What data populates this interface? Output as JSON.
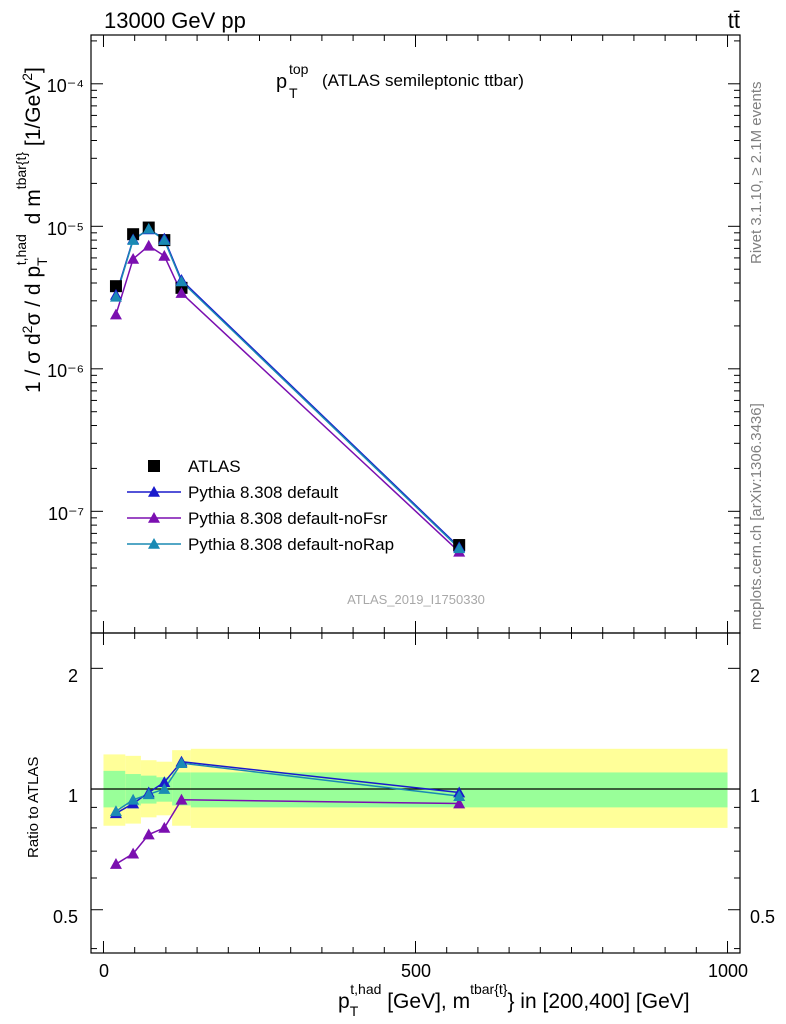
{
  "header": {
    "energy_label": "13000 GeV pp",
    "process_label": "tt̄"
  },
  "main_plot": {
    "title_main": "p",
    "title_sup": "top",
    "title_sub": "T",
    "title_rest": "(ATLAS semileptonic ttbar)",
    "ylabel": "1 / σ d²σ / d p_T^{t,had} d m^{tbar{t}} [1/GeV²]",
    "watermark": "ATLAS_2019_I1750330",
    "yticks": [
      "10⁻⁴",
      "10⁻⁵",
      "10⁻⁶",
      "10⁻⁷"
    ]
  },
  "ratio_plot": {
    "ylabel": "Ratio to ATLAS",
    "yticks": [
      "2",
      "1",
      "0.5"
    ]
  },
  "xaxis": {
    "ticks": [
      "0",
      "500",
      "1000"
    ],
    "label": "p_T^{t,had} [GeV], m^{tbar{t}} in [200,400] [GeV]"
  },
  "side_text": {
    "rivet": "Rivet 3.1.10, ≥ 2.1M events",
    "mcplots": "mcplots.cern.ch [arXiv:1306.3436]"
  },
  "legend": [
    {
      "label": "ATLAS",
      "marker": "square",
      "color": "#000000"
    },
    {
      "label": "Pythia 8.308 default",
      "marker": "triangle",
      "color": "#1a1acc"
    },
    {
      "label": "Pythia 8.308 default-noFsr",
      "marker": "triangle",
      "color": "#7b0fb0"
    },
    {
      "label": "Pythia 8.308 default-noRap",
      "marker": "triangle",
      "color": "#1a8ab4"
    }
  ],
  "chart_data": {
    "type": "scatter",
    "x": [
      20,
      47.5,
      72.5,
      97.5,
      125,
      570
    ],
    "xlim": [
      -20,
      1020
    ],
    "main": {
      "yscale": "log",
      "ylim": [
        1.4e-08,
        0.00022
      ],
      "series": [
        {
          "name": "ATLAS",
          "values": [
            3.8e-06,
            8.8e-06,
            9.8e-06,
            8e-06,
            3.7e-06,
            5.8e-08
          ],
          "color": "#000000",
          "marker": "square"
        },
        {
          "name": "Pythia 8.308 default",
          "values": [
            3.3e-06,
            8.1e-06,
            9.5e-06,
            8.2e-06,
            4.2e-06,
            5.6e-08
          ],
          "color": "#1a1acc",
          "marker": "triangle"
        },
        {
          "name": "Pythia 8.308 default-noFsr",
          "values": [
            2.4e-06,
            5.9e-06,
            7.3e-06,
            6.2e-06,
            3.4e-06,
            5.2e-08
          ],
          "color": "#7b0fb0",
          "marker": "triangle"
        },
        {
          "name": "Pythia 8.308 default-noRap",
          "values": [
            3.2e-06,
            8e-06,
            9.6e-06,
            8e-06,
            4.1e-06,
            5.5e-08
          ],
          "color": "#1a8ab4",
          "marker": "triangle"
        }
      ]
    },
    "ratio": {
      "yscale": "log",
      "ylim": [
        0.39,
        2.45
      ],
      "reference": 1.0,
      "bands": {
        "edges": [
          0,
          35,
          60,
          85,
          110,
          140,
          1000
        ],
        "inner": [
          [
            0.9,
            1.11
          ],
          [
            0.91,
            1.09
          ],
          [
            0.92,
            1.08
          ],
          [
            0.93,
            1.07
          ],
          [
            0.91,
            1.1
          ],
          [
            0.9,
            1.1
          ]
        ],
        "outer": [
          [
            0.81,
            1.22
          ],
          [
            0.82,
            1.21
          ],
          [
            0.85,
            1.18
          ],
          [
            0.86,
            1.17
          ],
          [
            0.81,
            1.25
          ],
          [
            0.8,
            1.26
          ]
        ],
        "inner_color": "#99ff99",
        "outer_color": "#ffff99"
      },
      "series": [
        {
          "name": "Pythia 8.308 default",
          "values": [
            0.87,
            0.92,
            0.98,
            1.04,
            1.17,
            0.98
          ],
          "color": "#1a1acc"
        },
        {
          "name": "Pythia 8.308 default-noFsr",
          "values": [
            0.65,
            0.69,
            0.77,
            0.8,
            0.94,
            0.92
          ],
          "color": "#7b0fb0"
        },
        {
          "name": "Pythia 8.308 default-noRap",
          "values": [
            0.88,
            0.94,
            0.97,
            1.0,
            1.16,
            0.96
          ],
          "color": "#1a8ab4"
        }
      ]
    }
  }
}
